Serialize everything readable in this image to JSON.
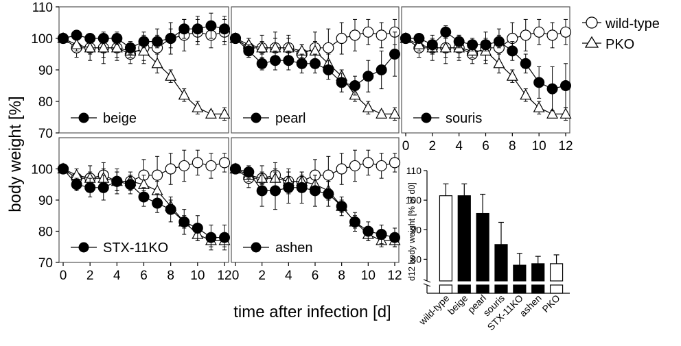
{
  "figure": {
    "ylabel": "body weight [%]",
    "xlabel": "time after infection [d]",
    "legend": {
      "wildtype_label": "wild-type",
      "pko_label": "PKO"
    }
  },
  "chart_data": [
    {
      "type": "line",
      "panel": "beige",
      "label": "beige",
      "ylim": [
        70,
        110
      ],
      "yticks": [
        70,
        80,
        90,
        100,
        110
      ],
      "xlim": [
        0,
        12
      ],
      "xticks": [
        0,
        2,
        4,
        6,
        8,
        10,
        12
      ],
      "show_yticks": true,
      "show_xticks": false,
      "x": [
        0,
        1,
        2,
        3,
        4,
        5,
        6,
        7,
        8,
        9,
        10,
        11,
        12
      ],
      "series": [
        {
          "name": "wild-type",
          "marker": "open-circle",
          "values": [
            100,
            97,
            97,
            97,
            97,
            95,
            97,
            97,
            100,
            101,
            102,
            101,
            102
          ],
          "errors": [
            0,
            3,
            4,
            5,
            4,
            3,
            5,
            6,
            5,
            5,
            4,
            4,
            4
          ]
        },
        {
          "name": "PKO",
          "marker": "open-triangle",
          "values": [
            100,
            98,
            97,
            97,
            97,
            96,
            96,
            92,
            88,
            82,
            78,
            76,
            76
          ],
          "errors": [
            0,
            2,
            2,
            3,
            3,
            2,
            3,
            3,
            2,
            2,
            2,
            1,
            2
          ]
        },
        {
          "name": "beige",
          "marker": "filled-circle",
          "values": [
            100,
            101,
            100,
            100,
            100,
            97,
            99,
            99,
            100,
            103,
            103,
            104,
            103
          ],
          "errors": [
            0,
            1,
            1,
            1,
            2,
            2,
            2,
            2,
            3,
            3,
            4,
            4,
            4
          ]
        }
      ]
    },
    {
      "type": "line",
      "panel": "pearl",
      "label": "pearl",
      "ylim": [
        70,
        110
      ],
      "xlim": [
        0,
        12
      ],
      "xticks": [
        0,
        2,
        4,
        6,
        8,
        10,
        12
      ],
      "show_yticks": false,
      "show_xticks": false,
      "x": [
        0,
        1,
        2,
        3,
        4,
        5,
        6,
        7,
        8,
        9,
        10,
        11,
        12
      ],
      "series": [
        {
          "name": "wild-type",
          "marker": "open-circle",
          "values": [
            100,
            97,
            97,
            97,
            97,
            95,
            97,
            97,
            100,
            101,
            102,
            101,
            102
          ],
          "errors": [
            0,
            3,
            4,
            5,
            4,
            3,
            5,
            6,
            5,
            5,
            4,
            4,
            4
          ]
        },
        {
          "name": "PKO",
          "marker": "open-triangle",
          "values": [
            100,
            98,
            97,
            97,
            97,
            96,
            96,
            92,
            88,
            82,
            78,
            76,
            76
          ],
          "errors": [
            0,
            2,
            2,
            3,
            3,
            2,
            3,
            3,
            2,
            2,
            2,
            1,
            2
          ]
        },
        {
          "name": "pearl",
          "marker": "filled-circle",
          "values": [
            100,
            96,
            92,
            93,
            93,
            92,
            92,
            90,
            86,
            85,
            88,
            90,
            95
          ],
          "errors": [
            0,
            2,
            2,
            3,
            3,
            3,
            3,
            3,
            3,
            3,
            5,
            6,
            7
          ]
        }
      ]
    },
    {
      "type": "line",
      "panel": "souris",
      "label": "souris",
      "ylim": [
        70,
        110
      ],
      "xlim": [
        0,
        12
      ],
      "xticks": [
        0,
        2,
        4,
        6,
        8,
        10,
        12
      ],
      "xtick_labels": [
        "0",
        "2",
        "4",
        "6",
        "8",
        "10",
        "12"
      ],
      "show_yticks": false,
      "show_xticks": true,
      "x": [
        0,
        1,
        2,
        3,
        4,
        5,
        6,
        7,
        8,
        9,
        10,
        11,
        12
      ],
      "series": [
        {
          "name": "wild-type",
          "marker": "open-circle",
          "values": [
            100,
            97,
            97,
            97,
            97,
            95,
            97,
            97,
            100,
            101,
            102,
            101,
            102
          ],
          "errors": [
            0,
            3,
            4,
            5,
            4,
            3,
            5,
            6,
            5,
            5,
            4,
            4,
            4
          ]
        },
        {
          "name": "PKO",
          "marker": "open-triangle",
          "values": [
            100,
            98,
            97,
            97,
            97,
            96,
            96,
            92,
            88,
            82,
            78,
            76,
            76
          ],
          "errors": [
            0,
            2,
            2,
            3,
            3,
            2,
            3,
            3,
            2,
            2,
            2,
            1,
            2
          ]
        },
        {
          "name": "souris",
          "marker": "filled-circle",
          "values": [
            100,
            100,
            98,
            102,
            99,
            98,
            98,
            99,
            96,
            92,
            86,
            84,
            85
          ],
          "errors": [
            0,
            1,
            2,
            2,
            2,
            2,
            2,
            2,
            3,
            3,
            5,
            7,
            7
          ]
        }
      ]
    },
    {
      "type": "line",
      "panel": "stx11ko",
      "label": "STX-11KO",
      "ylim": [
        70,
        110
      ],
      "yticks": [
        70,
        80,
        90,
        100
      ],
      "xlim": [
        0,
        12
      ],
      "xticks": [
        0,
        2,
        4,
        6,
        8,
        10,
        12
      ],
      "xtick_labels": [
        "0",
        "2",
        "4",
        "6",
        "8",
        "10",
        "12"
      ],
      "show_yticks": true,
      "show_xticks": true,
      "x": [
        0,
        1,
        2,
        3,
        4,
        5,
        6,
        7,
        8,
        9,
        10,
        11,
        12
      ],
      "series": [
        {
          "name": "wild-type",
          "marker": "open-circle",
          "values": [
            100,
            97,
            97,
            98,
            96,
            96,
            98,
            98,
            100,
            101,
            102,
            101,
            102
          ],
          "errors": [
            0,
            3,
            4,
            4,
            4,
            3,
            5,
            6,
            5,
            5,
            4,
            4,
            3
          ]
        },
        {
          "name": "PKO",
          "marker": "open-triangle",
          "values": [
            100,
            98,
            97,
            97,
            96,
            96,
            95,
            93,
            88,
            83,
            79,
            77,
            77
          ],
          "errors": [
            0,
            2,
            2,
            3,
            3,
            2,
            3,
            3,
            2,
            2,
            2,
            2,
            2
          ]
        },
        {
          "name": "STX-11KO",
          "marker": "filled-circle",
          "values": [
            100,
            95,
            94,
            94,
            96,
            95,
            91,
            89,
            87,
            83,
            81,
            78,
            78
          ],
          "errors": [
            0,
            2,
            3,
            4,
            3,
            3,
            3,
            3,
            4,
            4,
            4,
            4,
            4
          ]
        }
      ]
    },
    {
      "type": "line",
      "panel": "ashen",
      "label": "ashen",
      "ylim": [
        70,
        110
      ],
      "xlim": [
        0,
        12
      ],
      "xticks": [
        0,
        2,
        4,
        6,
        8,
        10,
        12
      ],
      "xtick_labels": [
        "0",
        "2",
        "4",
        "6",
        "8",
        "10",
        "12"
      ],
      "show_yticks": false,
      "show_xticks": true,
      "x": [
        0,
        1,
        2,
        3,
        4,
        5,
        6,
        7,
        8,
        9,
        10,
        11,
        12
      ],
      "series": [
        {
          "name": "wild-type",
          "marker": "open-circle",
          "values": [
            100,
            97,
            97,
            98,
            96,
            96,
            98,
            98,
            100,
            101,
            102,
            101,
            102
          ],
          "errors": [
            0,
            3,
            4,
            4,
            4,
            3,
            5,
            6,
            5,
            5,
            4,
            4,
            3
          ]
        },
        {
          "name": "PKO",
          "marker": "open-triangle",
          "values": [
            100,
            98,
            97,
            97,
            96,
            96,
            95,
            93,
            88,
            83,
            79,
            77,
            77
          ],
          "errors": [
            0,
            2,
            2,
            3,
            3,
            2,
            3,
            3,
            2,
            2,
            2,
            2,
            2
          ]
        },
        {
          "name": "ashen",
          "marker": "filled-circle",
          "values": [
            100,
            99,
            93,
            93,
            94,
            94,
            93,
            92,
            88,
            83,
            80,
            79,
            78
          ],
          "errors": [
            0,
            2,
            5,
            6,
            5,
            5,
            5,
            4,
            3,
            3,
            3,
            3,
            3
          ]
        }
      ]
    },
    {
      "type": "bar",
      "title": "",
      "ylabel": "d12 body weight [% of d0]",
      "ylim": [
        70,
        110
      ],
      "yticks": [
        80,
        90,
        100,
        110
      ],
      "axis_break": true,
      "categories": [
        "wild-type",
        "beige",
        "pearl",
        "souris",
        "STX-11KO",
        "ashen",
        "PKO"
      ],
      "values": [
        101.5,
        101.5,
        95.5,
        85,
        78,
        78.5,
        78.5
      ],
      "errors": [
        4,
        4,
        6.5,
        7.5,
        4,
        2.5,
        3
      ],
      "fills": [
        "white",
        "black",
        "black",
        "black",
        "black",
        "black",
        "white"
      ]
    }
  ]
}
